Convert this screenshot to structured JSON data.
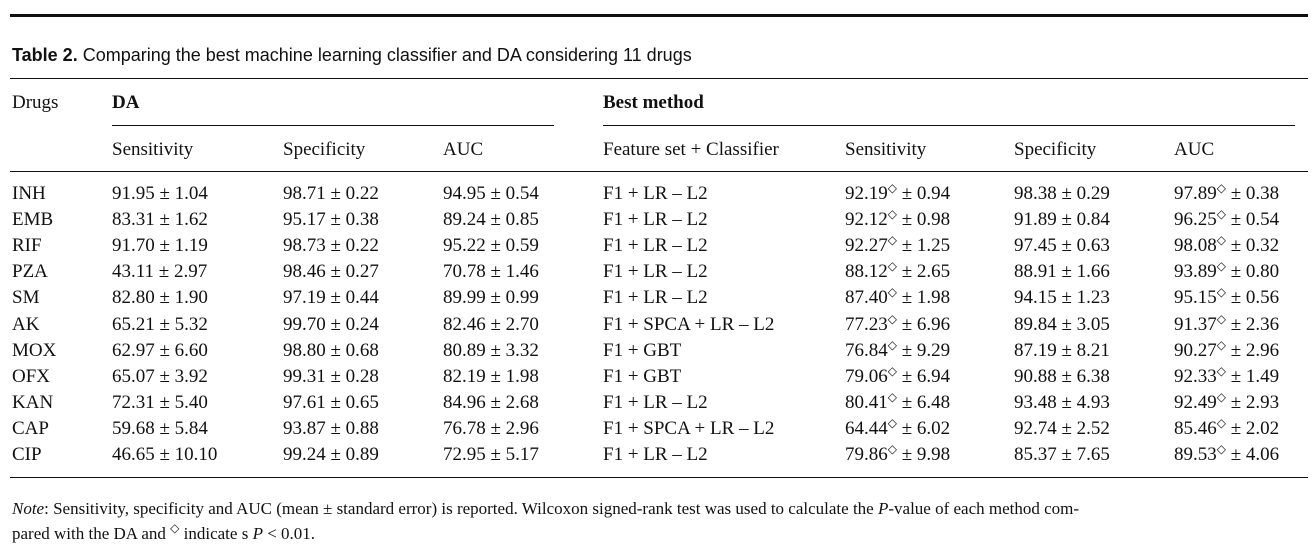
{
  "caption": {
    "label": "Table 2.",
    "text": " Comparing the best machine learning classifier and DA considering 11 drugs"
  },
  "header": {
    "drugs": "Drugs",
    "da_group": "DA",
    "best_group": "Best method",
    "columns": [
      "Sensitivity",
      "Specificity",
      "AUC",
      "Feature set + Classifier",
      "Sensitivity",
      "Specificity",
      "AUC"
    ]
  },
  "rows": [
    {
      "drug": "INH",
      "da_sens": "91.95 ± 1.04",
      "da_spec": "98.71 ± 0.22",
      "da_auc": "94.95 ± 0.54",
      "method": "F1 + LR – L2",
      "best_sens": "92.19",
      "best_sens_err": " ± 0.94",
      "best_spec": "98.38 ± 0.29",
      "best_auc": "97.89",
      "best_auc_err": " ± 0.38"
    },
    {
      "drug": "EMB",
      "da_sens": "83.31 ± 1.62",
      "da_spec": "95.17 ± 0.38",
      "da_auc": "89.24 ± 0.85",
      "method": "F1 + LR – L2",
      "best_sens": "92.12",
      "best_sens_err": " ± 0.98",
      "best_spec": "91.89 ± 0.84",
      "best_auc": "96.25",
      "best_auc_err": " ± 0.54"
    },
    {
      "drug": "RIF",
      "da_sens": "91.70 ± 1.19",
      "da_spec": "98.73 ± 0.22",
      "da_auc": "95.22 ± 0.59",
      "method": "F1 + LR – L2",
      "best_sens": "92.27",
      "best_sens_err": " ± 1.25",
      "best_spec": "97.45 ± 0.63",
      "best_auc": "98.08",
      "best_auc_err": " ± 0.32"
    },
    {
      "drug": "PZA",
      "da_sens": "43.11 ± 2.97",
      "da_spec": "98.46 ± 0.27",
      "da_auc": "70.78 ± 1.46",
      "method": "F1 + LR – L2",
      "best_sens": "88.12",
      "best_sens_err": " ± 2.65",
      "best_spec": "88.91 ± 1.66",
      "best_auc": "93.89",
      "best_auc_err": " ± 0.80"
    },
    {
      "drug": "SM",
      "da_sens": "82.80 ± 1.90",
      "da_spec": "97.19 ± 0.44",
      "da_auc": "89.99 ± 0.99",
      "method": "F1 + LR – L2",
      "best_sens": "87.40",
      "best_sens_err": " ± 1.98",
      "best_spec": "94.15 ± 1.23",
      "best_auc": "95.15",
      "best_auc_err": " ± 0.56"
    },
    {
      "drug": "AK",
      "da_sens": "65.21 ± 5.32",
      "da_spec": "99.70 ± 0.24",
      "da_auc": "82.46 ± 2.70",
      "method": "F1 + SPCA + LR – L2",
      "best_sens": "77.23",
      "best_sens_err": " ± 6.96",
      "best_spec": "89.84 ± 3.05",
      "best_auc": "91.37",
      "best_auc_err": " ± 2.36"
    },
    {
      "drug": "MOX",
      "da_sens": "62.97 ± 6.60",
      "da_spec": "98.80 ± 0.68",
      "da_auc": "80.89 ± 3.32",
      "method": "F1 + GBT",
      "best_sens": "76.84",
      "best_sens_err": " ± 9.29",
      "best_spec": "87.19 ± 8.21",
      "best_auc": "90.27",
      "best_auc_err": " ± 2.96"
    },
    {
      "drug": "OFX",
      "da_sens": "65.07 ± 3.92",
      "da_spec": "99.31 ± 0.28",
      "da_auc": "82.19 ± 1.98",
      "method": "F1 + GBT",
      "best_sens": "79.06",
      "best_sens_err": " ± 6.94",
      "best_spec": "90.88 ± 6.38",
      "best_auc": "92.33",
      "best_auc_err": " ± 1.49"
    },
    {
      "drug": "KAN",
      "da_sens": "72.31 ± 5.40",
      "da_spec": "97.61 ± 0.65",
      "da_auc": "84.96 ± 2.68",
      "method": "F1 + LR – L2",
      "best_sens": "80.41",
      "best_sens_err": " ± 6.48",
      "best_spec": "93.48 ± 4.93",
      "best_auc": "92.49",
      "best_auc_err": " ± 2.93"
    },
    {
      "drug": "CAP",
      "da_sens": "59.68 ± 5.84",
      "da_spec": "93.87 ± 0.88",
      "da_auc": "76.78 ± 2.96",
      "method": "F1 + SPCA + LR – L2",
      "best_sens": "64.44",
      "best_sens_err": " ± 6.02",
      "best_spec": "92.74 ± 2.52",
      "best_auc": "85.46",
      "best_auc_err": " ± 2.02"
    },
    {
      "drug": "CIP",
      "da_sens": "46.65 ± 10.10",
      "da_spec": "99.24 ± 0.89",
      "da_auc": "72.95 ± 5.17",
      "method": "F1 + LR – L2",
      "best_sens": "79.86",
      "best_sens_err": " ± 9.98",
      "best_spec": "85.37 ± 7.65",
      "best_auc": "89.53",
      "best_auc_err": " ± 4.06"
    }
  ],
  "marker": "◇",
  "note": {
    "label": "Note",
    "part1": ": Sensitivity, specificity and AUC (mean ± standard error) is reported. Wilcoxon signed-rank test was used to calculate the ",
    "p_symbol": "P",
    "part2": "-value of each method com-",
    "part3": "pared with the DA and ",
    "part4": " indicate s ",
    "p_symbol2": "P",
    "part5": " < 0.01."
  }
}
